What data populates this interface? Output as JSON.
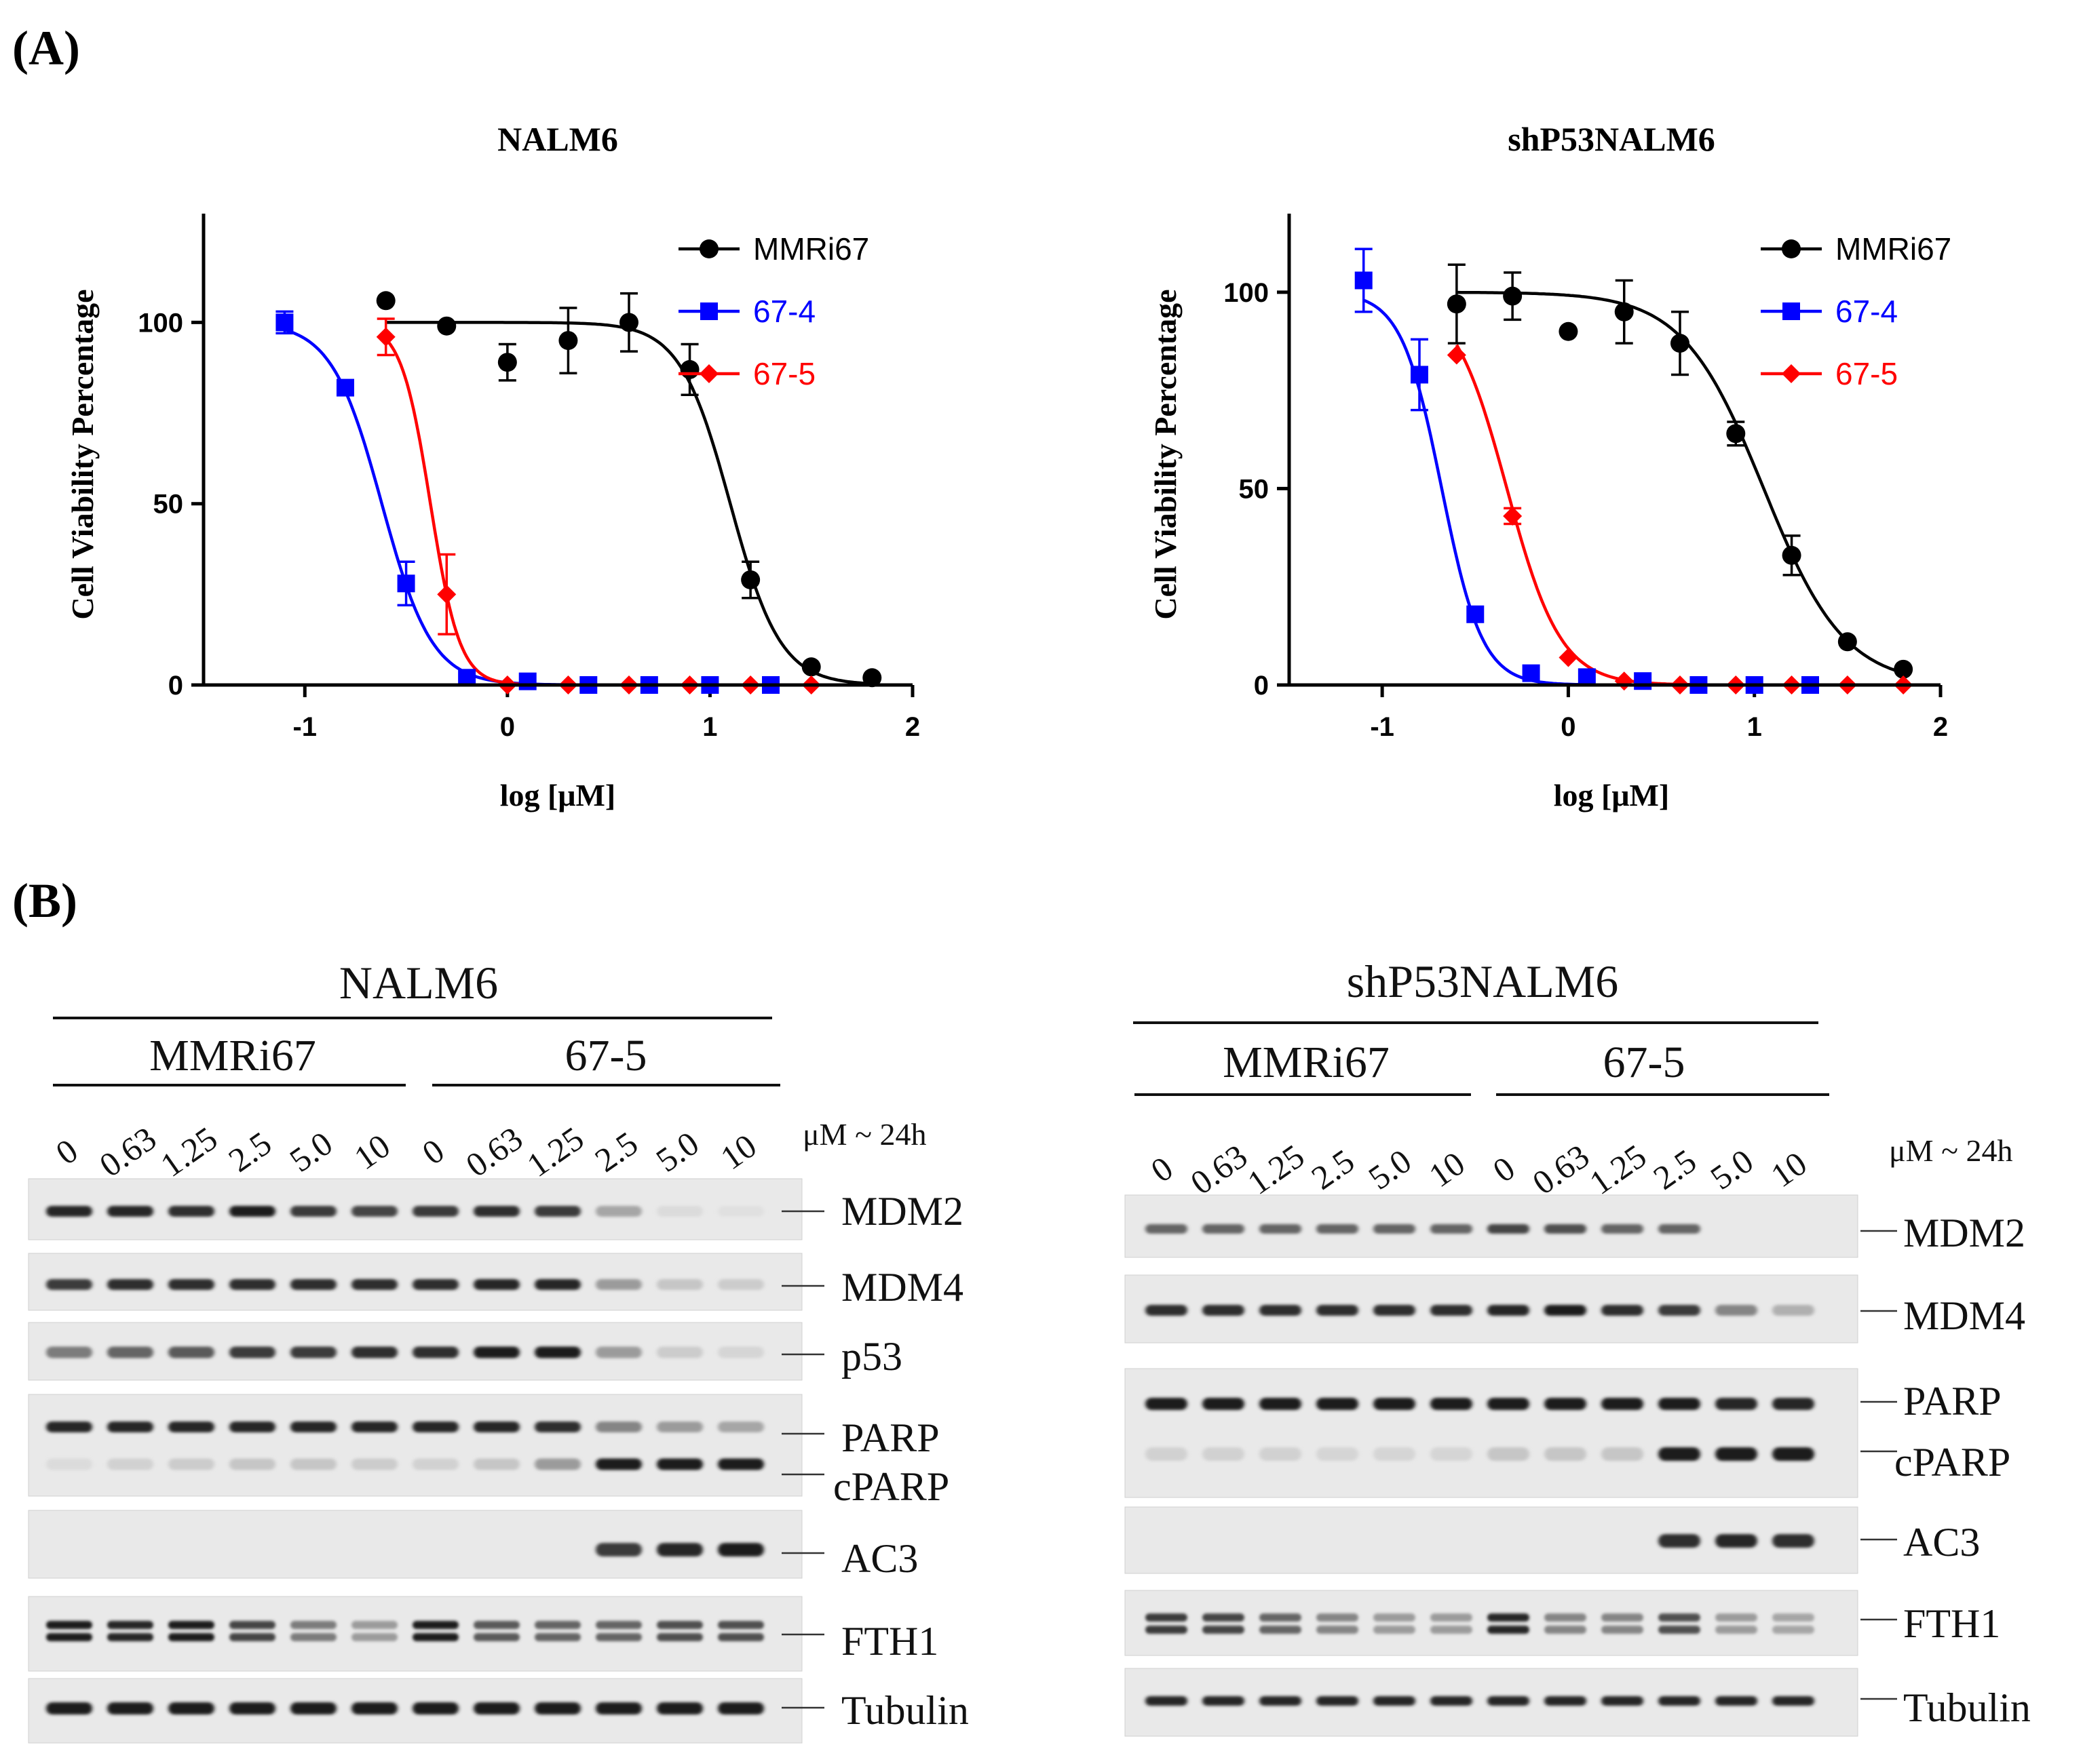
{
  "figure": {
    "panel_a_label": "(A)",
    "panel_b_label": "(B)"
  },
  "chart_data": [
    {
      "type": "scatter",
      "title": "NALM6",
      "xlabel": "log [μM]",
      "ylabel": "Cell Viability Percentage",
      "xlim": [
        -1.5,
        2
      ],
      "ylim": [
        0,
        130
      ],
      "xticks": [
        -1,
        0,
        1,
        2
      ],
      "yticks": [
        0,
        50,
        100
      ],
      "legend_position": "top-right",
      "series": [
        {
          "name": "MMRi67",
          "color": "#000000",
          "marker": "circle",
          "x": [
            -0.6,
            -0.3,
            0.0,
            0.3,
            0.6,
            0.9,
            1.2,
            1.5,
            1.8
          ],
          "y": [
            106,
            99,
            89,
            95,
            100,
            87,
            29,
            5,
            2
          ],
          "err": [
            0,
            0,
            5,
            9,
            8,
            7,
            5,
            0,
            0
          ],
          "fit": {
            "top": 100,
            "bottom": 0,
            "ec50_log": 1.1,
            "hill": 3.5
          }
        },
        {
          "name": "67-4",
          "color": "#0000ff",
          "marker": "square",
          "x": [
            -1.1,
            -0.8,
            -0.5,
            -0.2,
            0.1,
            0.4,
            0.7,
            1.0,
            1.3
          ],
          "y": [
            100,
            82,
            28,
            2,
            1,
            0,
            0,
            0,
            0
          ],
          "err": [
            3,
            0,
            6,
            0,
            0,
            0,
            0,
            0,
            0
          ],
          "fit": {
            "top": 100,
            "bottom": 0,
            "ec50_log": -0.62,
            "hill": 3.5
          }
        },
        {
          "name": "67-5",
          "color": "#ff0000",
          "marker": "diamond",
          "x": [
            -0.6,
            -0.3,
            0.0,
            0.3,
            0.6,
            0.9,
            1.2,
            1.5
          ],
          "y": [
            96,
            25,
            0,
            0,
            0,
            0,
            0,
            0
          ],
          "err": [
            5,
            11,
            0,
            0,
            0,
            0,
            0,
            0
          ],
          "fit": {
            "top": 100,
            "bottom": 0,
            "ec50_log": -0.38,
            "hill": 6
          }
        }
      ]
    },
    {
      "type": "scatter",
      "title": "shP53NALM6",
      "xlabel": "log [μM]",
      "ylabel": "Cell Viability Percentage",
      "xlim": [
        -1.5,
        2
      ],
      "ylim": [
        0,
        120
      ],
      "xticks": [
        -1,
        0,
        1,
        2
      ],
      "yticks": [
        0,
        50,
        100
      ],
      "legend_position": "top-right",
      "series": [
        {
          "name": "MMRi67",
          "color": "#000000",
          "marker": "circle",
          "x": [
            -0.6,
            -0.3,
            0.0,
            0.3,
            0.6,
            0.9,
            1.2,
            1.5,
            1.8
          ],
          "y": [
            97,
            99,
            90,
            95,
            87,
            64,
            33,
            11,
            4
          ],
          "err": [
            10,
            6,
            0,
            8,
            8,
            3,
            5,
            0,
            0
          ],
          "fit": {
            "top": 100,
            "bottom": 0,
            "ec50_log": 1.05,
            "hill": 2
          }
        },
        {
          "name": "67-4",
          "color": "#0000ff",
          "marker": "square",
          "x": [
            -1.1,
            -0.8,
            -0.5,
            -0.2,
            0.1,
            0.4,
            0.7,
            1.0,
            1.3
          ],
          "y": [
            103,
            79,
            18,
            3,
            2,
            1,
            0,
            0,
            0
          ],
          "err": [
            8,
            9,
            0,
            0,
            0,
            0,
            0,
            0,
            0
          ],
          "fit": {
            "top": 100,
            "bottom": 0,
            "ec50_log": -0.68,
            "hill": 4
          }
        },
        {
          "name": "67-5",
          "color": "#ff0000",
          "marker": "diamond",
          "x": [
            -0.6,
            -0.3,
            0.0,
            0.3,
            0.6,
            0.9,
            1.2,
            1.5,
            1.8
          ],
          "y": [
            84,
            43,
            7,
            1,
            0,
            0,
            0,
            0,
            0
          ],
          "err": [
            0,
            2,
            0,
            0,
            0,
            0,
            0,
            0,
            0
          ],
          "fit": {
            "top": 100,
            "bottom": 0,
            "ec50_log": -0.33,
            "hill": 3
          }
        }
      ]
    }
  ],
  "western_blots": {
    "unit_label": "μM ~ 24h",
    "left": {
      "cell_line": "NALM6",
      "groups": [
        "MMRi67",
        "67-5"
      ],
      "concentrations": [
        "0",
        "0.63",
        "1.25",
        "2.5",
        "5.0",
        "10",
        "0",
        "0.63",
        "1.25",
        "2.5",
        "5.0",
        "10"
      ],
      "proteins": [
        "MDM2",
        "MDM4",
        "p53",
        "PARP",
        "cPARP",
        "AC3",
        "FTH1",
        "Tubulin"
      ]
    },
    "right": {
      "cell_line": "shP53NALM6",
      "groups": [
        "MMRi67",
        "67-5"
      ],
      "concentrations": [
        "0",
        "0.63",
        "1.25",
        "2.5",
        "5.0",
        "10",
        "0",
        "0.63",
        "1.25",
        "2.5",
        "5.0",
        "10"
      ],
      "proteins": [
        "MDM2",
        "MDM4",
        "PARP",
        "cPARP",
        "AC3",
        "FTH1",
        "Tubulin"
      ]
    }
  }
}
